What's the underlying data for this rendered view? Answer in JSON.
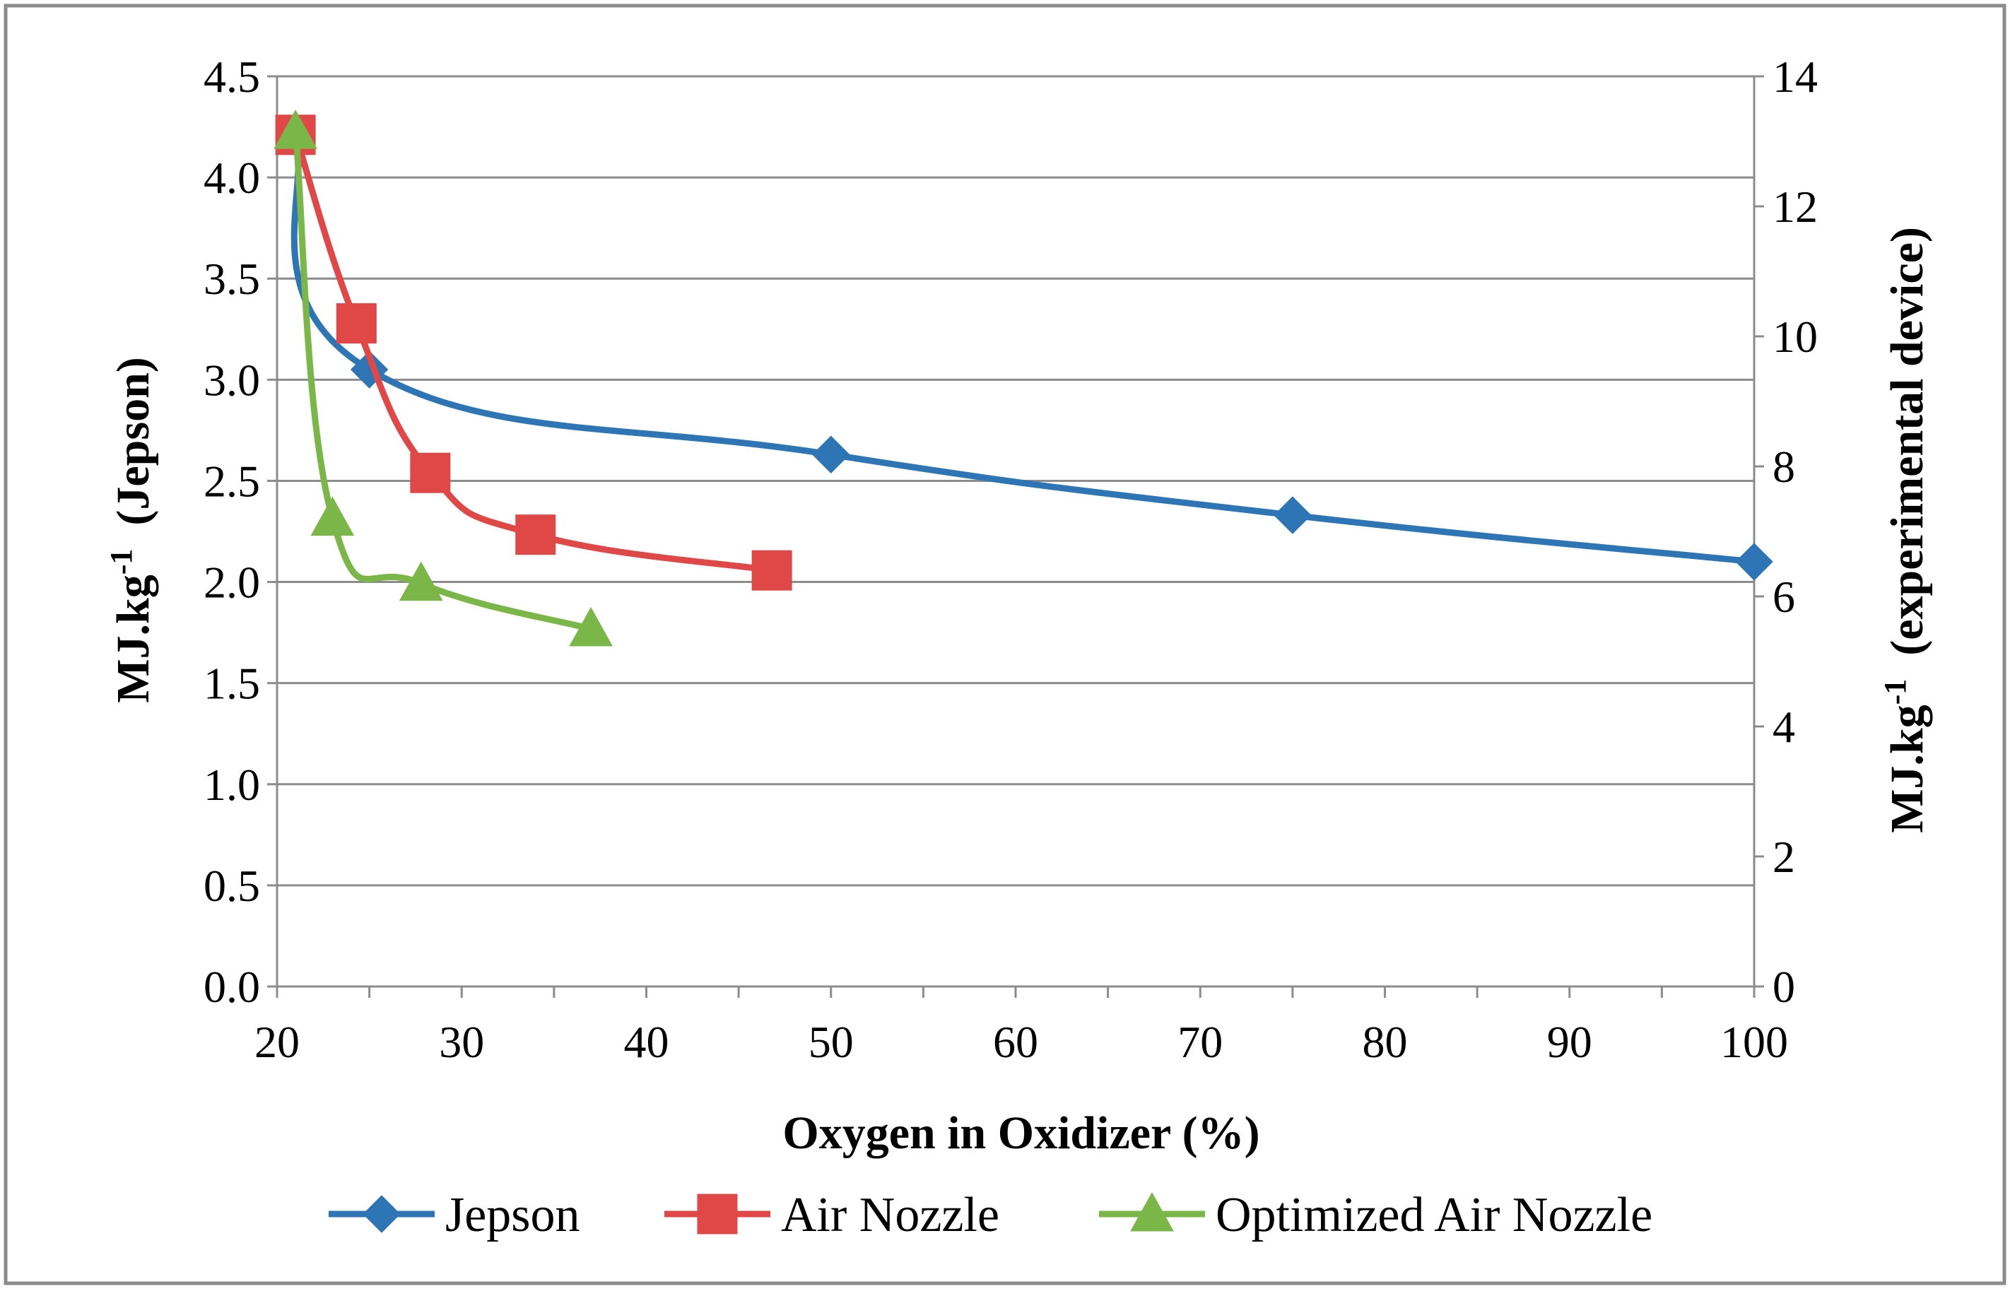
{
  "chart_data": {
    "type": "line",
    "xlabel": "Oxygen in Oxidizer  (%)",
    "ylabel_left": {
      "main": "MJ.kg",
      "sup": "-1",
      "suffix": "  (Jepson)"
    },
    "ylabel_right": {
      "main": "MJ.kg",
      "sup": "-1",
      "suffix": "  (experimental device)"
    },
    "xlim": [
      20,
      100
    ],
    "x_ticks": [
      20,
      30,
      40,
      50,
      60,
      70,
      80,
      90,
      100
    ],
    "ylim_left": [
      0,
      4.5
    ],
    "y_ticks_left": [
      "0.0",
      "0.5",
      "1.0",
      "1.5",
      "2.0",
      "2.5",
      "3.0",
      "3.5",
      "4.0",
      "4.5"
    ],
    "ylim_right": [
      0,
      14
    ],
    "y_ticks_right": [
      "0",
      "2",
      "4",
      "6",
      "8",
      "10",
      "12",
      "14"
    ],
    "grid": "horizontal",
    "legend_position": "bottom",
    "series": [
      {
        "name": "Jepson",
        "axis": "left",
        "marker": "diamond",
        "color": "#2E75B6",
        "x": [
          21,
          25,
          50,
          75,
          100
        ],
        "y": [
          4.2,
          3.05,
          2.63,
          2.33,
          2.1
        ]
      },
      {
        "name": "Air Nozzle",
        "axis": "right",
        "marker": "square",
        "color": "#E04848",
        "x": [
          21,
          24.3,
          28.3,
          34,
          46.8
        ],
        "y": [
          13.1,
          10.2,
          7.9,
          6.95,
          6.4
        ]
      },
      {
        "name": "Optimized Air Nozzle",
        "axis": "right",
        "marker": "triangle",
        "color": "#7AB648",
        "x": [
          21,
          23,
          27.8,
          37
        ],
        "y": [
          13.15,
          7.2,
          6.2,
          5.5
        ]
      }
    ]
  }
}
